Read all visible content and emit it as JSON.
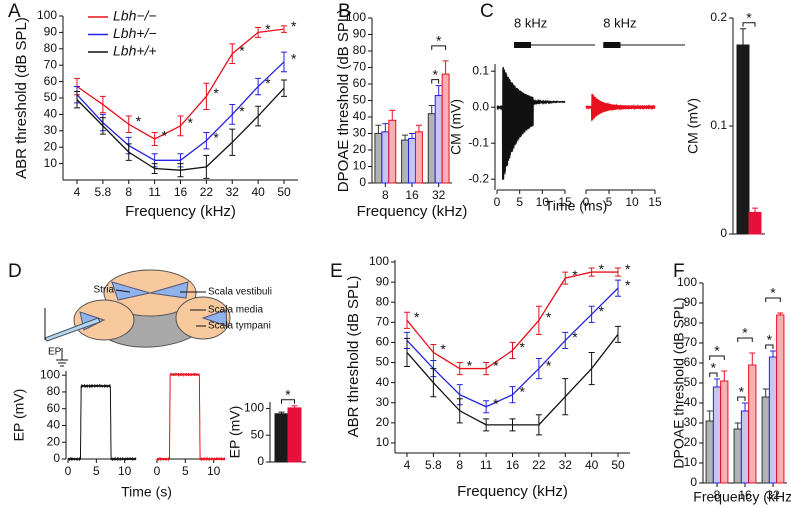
{
  "chart_data": [
    {
      "panel": "A",
      "type": "line",
      "ylabel": "ABR threshold (dB SPL)",
      "xlabel": "Frequency (kHz)",
      "categories": [
        "4",
        "5.8",
        "8",
        "11",
        "16",
        "22",
        "32",
        "40",
        "50"
      ],
      "ylim": [
        0,
        100
      ],
      "yticks": [
        10,
        20,
        30,
        40,
        50,
        60,
        70,
        80,
        90,
        100
      ],
      "sig_label": "*",
      "series": [
        {
          "name": "Lbh−/−",
          "color": "#e8101c",
          "values": [
            57,
            46,
            34,
            25,
            33,
            51,
            77,
            90,
            92
          ],
          "errors": [
            5,
            5,
            5,
            4,
            6,
            8,
            6,
            3,
            2
          ],
          "sig": [
            false,
            false,
            true,
            true,
            true,
            true,
            true,
            true,
            true
          ]
        },
        {
          "name": "Lbh+/−",
          "color": "#2323e0",
          "values": [
            52,
            35,
            21,
            12,
            12,
            24,
            40,
            57,
            72
          ],
          "errors": [
            5,
            5,
            5,
            4,
            4,
            5,
            6,
            5,
            6
          ],
          "sig": [
            false,
            false,
            false,
            false,
            false,
            true,
            true,
            true,
            true
          ]
        },
        {
          "name": "Lbh+/+",
          "color": "#111111",
          "values": [
            49,
            33,
            17,
            7,
            6,
            8,
            23,
            39,
            56
          ],
          "errors": [
            5,
            5,
            5,
            3,
            4,
            7,
            8,
            6,
            5
          ],
          "sig": [
            false,
            false,
            false,
            false,
            false,
            false,
            false,
            false,
            false
          ]
        }
      ]
    },
    {
      "panel": "B",
      "type": "bar",
      "ylabel": "DPOAE threshold (dB SPL)",
      "xlabel": "Frequency (kHz)",
      "categories": [
        "8",
        "16",
        "32"
      ],
      "ylim": [
        0,
        100
      ],
      "yticks": [
        0,
        10,
        20,
        30,
        40,
        50,
        60,
        70,
        80,
        90,
        100
      ],
      "series": [
        {
          "color": "#b3b3b3",
          "edge": "#333333",
          "values": [
            30,
            26,
            42
          ],
          "errors": [
            5,
            3,
            5
          ]
        },
        {
          "color": "#c9c4f2",
          "edge": "#2323e0",
          "values": [
            31,
            27,
            53
          ],
          "errors": [
            5,
            3,
            6
          ]
        },
        {
          "color": "#f8b0b4",
          "edge": "#e8101c",
          "values": [
            38,
            31,
            66
          ],
          "errors": [
            6,
            4,
            8
          ]
        }
      ],
      "brackets": [
        {
          "category": 2,
          "from": 0,
          "to": 1,
          "color": "#2323e0",
          "label": "*"
        },
        {
          "category": 2,
          "from": 0,
          "to": 2,
          "color": "#e8101c",
          "label": "*"
        }
      ]
    },
    {
      "panel": "C",
      "type": "trace",
      "ylabel": "CM (mV)",
      "xlabel": "Time (ms)",
      "stimulus_labels": [
        "8 kHz",
        "8 kHz"
      ],
      "xlim": [
        0,
        15
      ],
      "xticks": [
        0,
        5,
        10,
        15
      ],
      "ylim": [
        -0.23,
        0.12
      ],
      "yticks": [
        {
          "value": -0.2,
          "label": "-0.2"
        },
        {
          "value": -0.1,
          "label": "-0.1"
        },
        {
          "value": 0,
          "label": "0.0"
        },
        0.1
      ],
      "colors": [
        "#111111",
        "#e8101c"
      ]
    },
    {
      "type": "bar",
      "ylabel": "CM (mV)",
      "categories": [
        null
      ],
      "ylim": [
        0,
        0.2
      ],
      "yticks": [
        0,
        0.1,
        0.2
      ],
      "series": [
        {
          "color": "#1a1a1a",
          "edge": "#1a1a1a",
          "values": [
            0.175
          ],
          "errors": [
            0.015
          ]
        },
        {
          "color": "#e8103a",
          "edge": "#e8103a",
          "values": [
            0.02
          ],
          "errors": [
            0.004
          ]
        }
      ],
      "brackets": [
        {
          "category": 0,
          "from": 0,
          "to": 1,
          "color": "#e8101c",
          "label": "*"
        }
      ]
    },
    {
      "panel": "D",
      "type": "diagram",
      "labels": [
        "Stria",
        "Scala vestibuli",
        "Scala media",
        "Scala tympani",
        "EP"
      ]
    },
    {
      "type": "trace",
      "ylabel": "EP (mV)",
      "xlabel": "Time (s)",
      "xlim": [
        0,
        12
      ],
      "xticks": [
        0,
        5,
        10
      ],
      "ylim": [
        0,
        105
      ],
      "yticks": [
        0,
        20,
        40,
        60,
        80,
        100
      ],
      "colors": [
        "#111111",
        "#e8101c"
      ]
    },
    {
      "type": "bar",
      "ylabel": "EP (mV)",
      "categories": [
        null
      ],
      "ylim": [
        0,
        112
      ],
      "yticks": [
        0,
        50,
        100
      ],
      "series": [
        {
          "color": "#1a1a1a",
          "edge": "#1a1a1a",
          "values": [
            90
          ],
          "errors": [
            3
          ]
        },
        {
          "color": "#e8103a",
          "edge": "#e8103a",
          "values": [
            101
          ],
          "errors": [
            4
          ]
        }
      ],
      "brackets": [
        {
          "category": 0,
          "from": 0,
          "to": 1,
          "color": "#e8101c",
          "label": "*"
        }
      ]
    },
    {
      "panel": "E",
      "type": "line",
      "ylabel": "ABR threshold (dB SPL)",
      "xlabel": "Frequency (kHz)",
      "categories": [
        "4",
        "5.8",
        "8",
        "11",
        "16",
        "22",
        "32",
        "40",
        "50"
      ],
      "ylim": [
        5,
        101
      ],
      "yticks": [
        10,
        20,
        30,
        40,
        50,
        60,
        70,
        80,
        90,
        100
      ],
      "sig_label": "*",
      "series": [
        {
          "color": "#e8101c",
          "values": [
            71,
            55,
            47,
            47,
            56,
            71,
            92,
            95,
            95
          ],
          "errors": [
            4,
            4,
            3,
            3,
            4,
            7,
            3,
            2,
            2
          ],
          "sig": [
            true,
            true,
            true,
            true,
            true,
            true,
            true,
            true,
            true
          ]
        },
        {
          "color": "#2323e0",
          "values": [
            61,
            47,
            34,
            28,
            34,
            47,
            61,
            74,
            87
          ],
          "errors": [
            4,
            4,
            5,
            3,
            4,
            5,
            4,
            4,
            4
          ],
          "sig": [
            false,
            false,
            false,
            true,
            true,
            true,
            true,
            true,
            true
          ]
        },
        {
          "color": "#111111",
          "values": [
            55,
            40,
            26,
            19,
            19,
            19,
            33,
            47,
            64
          ],
          "errors": [
            7,
            7,
            6,
            3,
            3,
            5,
            9,
            8,
            4
          ],
          "sig": [
            false,
            false,
            false,
            false,
            false,
            false,
            false,
            false,
            false
          ]
        }
      ]
    },
    {
      "panel": "F",
      "type": "bar",
      "ylabel": "DPOAE threshold (dB SPL)",
      "xlabel": "Frequency (kHz)",
      "categories": [
        "8",
        "16",
        "32"
      ],
      "ylim": [
        0,
        100
      ],
      "yticks": [
        0,
        10,
        20,
        30,
        40,
        50,
        60,
        70,
        80,
        90,
        100
      ],
      "series": [
        {
          "color": "#b3b3b3",
          "edge": "#333333",
          "values": [
            31,
            27,
            43
          ],
          "errors": [
            5,
            3,
            4
          ]
        },
        {
          "color": "#c9c4f2",
          "edge": "#2323e0",
          "values": [
            48,
            36,
            63
          ],
          "errors": [
            4,
            4,
            3
          ]
        },
        {
          "color": "#f8b0b4",
          "edge": "#e8101c",
          "values": [
            51,
            59,
            84
          ],
          "errors": [
            5,
            6,
            1
          ]
        }
      ],
      "brackets": [
        {
          "category": 0,
          "from": 0,
          "to": 1,
          "color": "#2323e0",
          "label": "*"
        },
        {
          "category": 0,
          "from": 0,
          "to": 2,
          "color": "#e8101c",
          "label": "*"
        },
        {
          "category": 1,
          "from": 0,
          "to": 1,
          "color": "#2323e0",
          "label": "*"
        },
        {
          "category": 1,
          "from": 0,
          "to": 2,
          "color": "#e8101c",
          "label": "*"
        },
        {
          "category": 2,
          "from": 0,
          "to": 1,
          "color": "#2323e0",
          "label": "*"
        },
        {
          "category": 2,
          "from": 0,
          "to": 2,
          "color": "#e8101c",
          "label": "*"
        }
      ]
    }
  ]
}
